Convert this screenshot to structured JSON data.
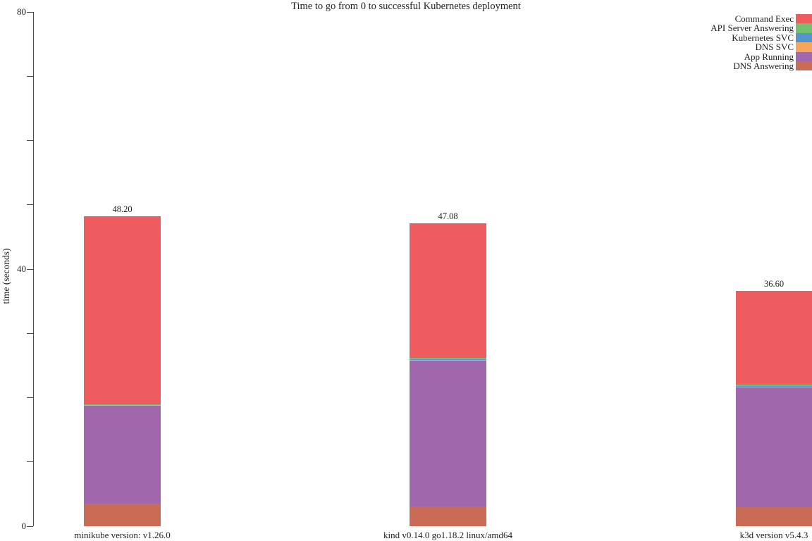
{
  "chart_data": {
    "type": "bar",
    "stacked": true,
    "title": "Time to go from 0 to successful Kubernetes deployment",
    "ylabel": "time (seconds)",
    "xlabel": "",
    "ylim": [
      0,
      80
    ],
    "yticks": [
      0,
      10,
      20,
      30,
      40,
      50,
      60,
      70,
      80
    ],
    "ytick_labeled": [
      0,
      40,
      80
    ],
    "grid": false,
    "legend_position": "top-right",
    "categories": [
      "minikube version: v1.26.0",
      "kind v0.14.0 go1.18.2 linux/amd64",
      "k3d version v5.4.3"
    ],
    "bar_totals": [
      "48.20",
      "47.08",
      "36.60"
    ],
    "series": [
      {
        "name": "DNS Answering",
        "color": "#ca6c55",
        "values": [
          3.5,
          3.1,
          3.0
        ]
      },
      {
        "name": "App Running",
        "color": "#a067ad",
        "values": [
          15.21,
          22.62,
          18.64
        ]
      },
      {
        "name": "DNS SVC",
        "color": "#f8a55c",
        "values": [
          0.1,
          0.11,
          0.1
        ]
      },
      {
        "name": "Kubernetes SVC",
        "color": "#5294cd",
        "values": [
          0.1,
          0.11,
          0.1
        ]
      },
      {
        "name": "API Server Answering",
        "color": "#73c16e",
        "values": [
          0.1,
          0.2,
          0.16
        ]
      },
      {
        "name": "Command Exec",
        "color": "#ee5c5f",
        "values": [
          29.19,
          20.94,
          14.6
        ]
      }
    ],
    "legend_order": [
      "Command Exec",
      "API Server Answering",
      "Kubernetes SVC",
      "DNS SVC",
      "App Running",
      "DNS Answering"
    ]
  }
}
